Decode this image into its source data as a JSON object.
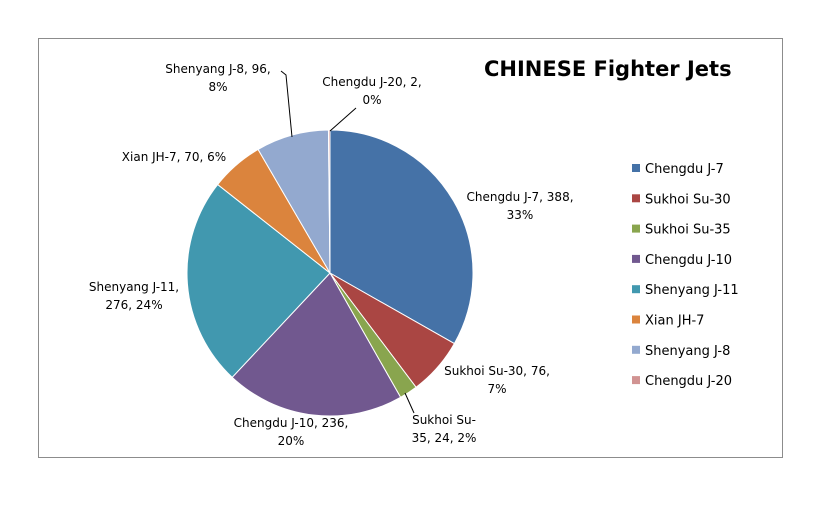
{
  "chart_data": {
    "type": "pie",
    "title": "CHINESE Fighter Jets",
    "legend_position": "right",
    "slices": [
      {
        "name": "Chengdu J-7",
        "value": 388,
        "percent": "33%",
        "color": "#4572A7",
        "label_lines": [
          "Chengdu J-7, 388,",
          "33%"
        ]
      },
      {
        "name": "Sukhoi Su-30",
        "value": 76,
        "percent": "7%",
        "color": "#AA4643",
        "label_lines": [
          "Sukhoi Su-30, 76,",
          "7%"
        ]
      },
      {
        "name": "Sukhoi Su-35",
        "value": 24,
        "percent": "2%",
        "color": "#89A54E",
        "label_lines": [
          "Sukhoi Su-",
          "35, 24, 2%"
        ]
      },
      {
        "name": "Chengdu J-10",
        "value": 236,
        "percent": "20%",
        "color": "#71588F",
        "label_lines": [
          "Chengdu J-10, 236,",
          "20%"
        ]
      },
      {
        "name": "Shenyang J-11",
        "value": 276,
        "percent": "24%",
        "color": "#4198AF",
        "label_lines": [
          "Shenyang J-11,",
          "276, 24%"
        ]
      },
      {
        "name": "Xian JH-7",
        "value": 70,
        "percent": "6%",
        "color": "#DB843D",
        "label_lines": [
          "Xian JH-7, 70, 6%"
        ]
      },
      {
        "name": "Shenyang J-8",
        "value": 96,
        "percent": "8%",
        "color": "#93A9CF",
        "label_lines": [
          "Shenyang J-8, 96,",
          "8%"
        ]
      },
      {
        "name": "Chengdu J-20",
        "value": 2,
        "percent": "0%",
        "color": "#D19392",
        "label_lines": [
          "Chengdu J-20, 2,",
          "0%"
        ]
      }
    ]
  }
}
